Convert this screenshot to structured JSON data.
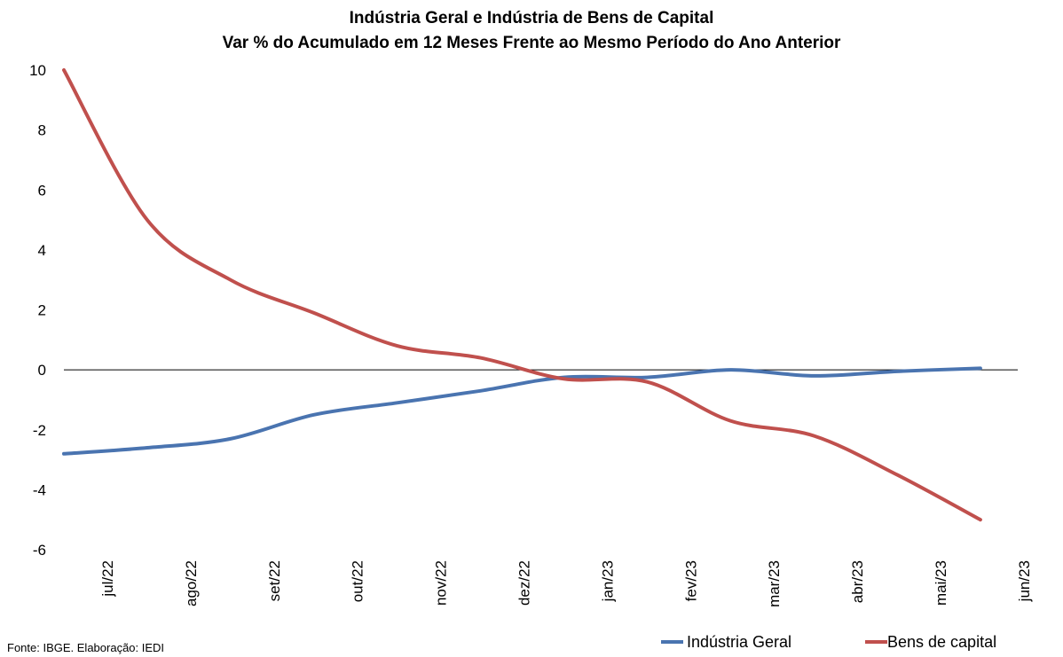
{
  "chart_data": {
    "type": "line",
    "title": "Indústria Geral e Indústria de Bens de Capital",
    "subtitle": "Var % do Acumulado em 12 Meses Frente ao Mesmo Período do Ano Anterior",
    "xlabel": "",
    "ylabel": "",
    "categories": [
      "jul/22",
      "ago/22",
      "set/22",
      "out/22",
      "nov/22",
      "dez/22",
      "jan/23",
      "fev/23",
      "mar/23",
      "abr/23",
      "mai/23",
      "jun/23"
    ],
    "ylim": [
      -6,
      10
    ],
    "yticks": [
      "10",
      "8",
      "6",
      "4",
      "2",
      "0",
      "-2",
      "-4",
      "-6"
    ],
    "grid": false,
    "legend_position": "bottom-right",
    "series": [
      {
        "name": "Indústria Geral",
        "color": "#4a74b0",
        "values": [
          -2.8,
          -2.6,
          -2.3,
          -1.5,
          -1.1,
          -0.7,
          -0.25,
          -0.25,
          0.0,
          -0.2,
          -0.05,
          0.05
        ]
      },
      {
        "name": "Bens de capital",
        "color": "#c0504d",
        "values": [
          10.0,
          5.0,
          3.0,
          1.9,
          0.8,
          0.4,
          -0.3,
          -0.4,
          -1.7,
          -2.2,
          -3.5,
          -5.0
        ]
      }
    ],
    "source": "Fonte: IBGE. Elaboração: IEDI"
  }
}
